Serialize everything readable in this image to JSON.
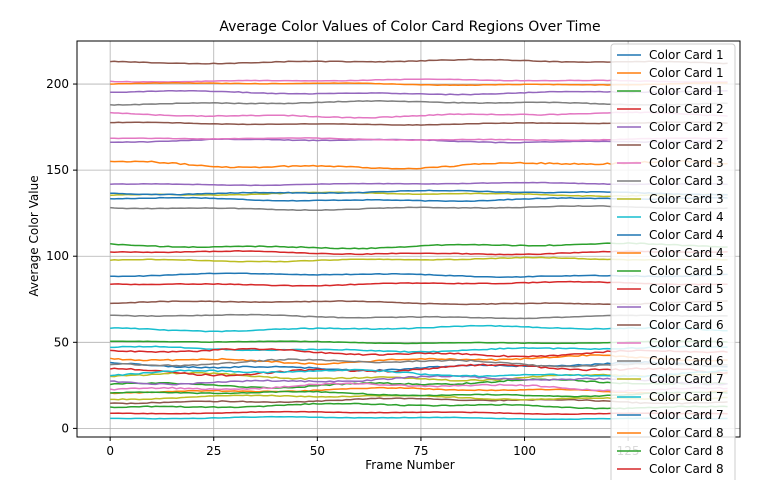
{
  "chart_data": {
    "type": "line",
    "title": "Average Color Values of Color Card Regions Over Time",
    "xlabel": "Frame Number",
    "ylabel": "Average Color Value",
    "xlim": [
      -8,
      152
    ],
    "ylim": [
      -5,
      225
    ],
    "x_ticks": [
      0,
      25,
      50,
      75,
      100,
      125
    ],
    "y_ticks": [
      0,
      50,
      100,
      150,
      200
    ],
    "grid": true,
    "legend_position": "right",
    "n_frames": 150,
    "series": [
      {
        "name": "Color Card 1",
        "color": "#1f77b4",
        "base": 133,
        "wobble": 1.5
      },
      {
        "name": "Color Card 1",
        "color": "#ff7f0e",
        "base": 153,
        "wobble": 3
      },
      {
        "name": "Color Card 1",
        "color": "#2ca02c",
        "base": 106,
        "wobble": 2
      },
      {
        "name": "Color Card 2",
        "color": "#d62728",
        "base": 84,
        "wobble": 1.5
      },
      {
        "name": "Color Card 2",
        "color": "#9467bd",
        "base": 142,
        "wobble": 1
      },
      {
        "name": "Color Card 2",
        "color": "#8c564b",
        "base": 213,
        "wobble": 1.5
      },
      {
        "name": "Color Card 3",
        "color": "#e377c2",
        "base": 202,
        "wobble": 1
      },
      {
        "name": "Color Card 3",
        "color": "#7f7f7f",
        "base": 189,
        "wobble": 1.5
      },
      {
        "name": "Color Card 3",
        "color": "#bcbd22",
        "base": 136,
        "wobble": 1.5
      },
      {
        "name": "Color Card 4",
        "color": "#17becf",
        "base": 6,
        "wobble": 1
      },
      {
        "name": "Color Card 4",
        "color": "#1f77b4",
        "base": 89,
        "wobble": 1.5
      },
      {
        "name": "Color Card 4",
        "color": "#ff7f0e",
        "base": 200,
        "wobble": 1
      },
      {
        "name": "Color Card 5",
        "color": "#2ca02c",
        "base": 50,
        "wobble": 1
      },
      {
        "name": "Color Card 5",
        "color": "#d62728",
        "base": 102,
        "wobble": 1.5
      },
      {
        "name": "Color Card 5",
        "color": "#9467bd",
        "base": 195,
        "wobble": 1.5
      },
      {
        "name": "Color Card 6",
        "color": "#8c564b",
        "base": 177,
        "wobble": 1
      },
      {
        "name": "Color Card 6",
        "color": "#e377c2",
        "base": 182,
        "wobble": 2
      },
      {
        "name": "Color Card 6",
        "color": "#7f7f7f",
        "base": 128,
        "wobble": 1.5
      },
      {
        "name": "Color Card 7",
        "color": "#bcbd22",
        "base": 98,
        "wobble": 1.5
      },
      {
        "name": "Color Card 7",
        "color": "#17becf",
        "base": 58,
        "wobble": 2
      },
      {
        "name": "Color Card 7",
        "color": "#1f77b4",
        "base": 137,
        "wobble": 1.5
      },
      {
        "name": "Color Card 8",
        "color": "#ff7f0e",
        "base": 22,
        "wobble": 2
      },
      {
        "name": "Color Card 8",
        "color": "#2ca02c",
        "base": 13,
        "wobble": 2
      },
      {
        "name": "Color Card 8",
        "color": "#d62728",
        "base": 9,
        "wobble": 1
      },
      {
        "color": "#9467bd",
        "base": 167,
        "wobble": 1.5
      },
      {
        "color": "#8c564b",
        "base": 73,
        "wobble": 1.5
      },
      {
        "color": "#e377c2",
        "base": 168,
        "wobble": 1
      },
      {
        "color": "#7f7f7f",
        "base": 65,
        "wobble": 1.5
      },
      {
        "color": "#bcbd22",
        "base": 30,
        "wobble": 3
      },
      {
        "color": "#17becf",
        "base": 46,
        "wobble": 2
      },
      {
        "color": "#1f77b4",
        "base": 36,
        "wobble": 3
      },
      {
        "color": "#ff7f0e",
        "base": 40,
        "wobble": 3
      },
      {
        "color": "#2ca02c",
        "base": 26,
        "wobble": 3
      },
      {
        "color": "#d62728",
        "base": 34,
        "wobble": 4
      },
      {
        "color": "#9467bd",
        "base": 28,
        "wobble": 3
      },
      {
        "color": "#8c564b",
        "base": 16,
        "wobble": 2
      },
      {
        "color": "#e377c2",
        "base": 24,
        "wobble": 3
      },
      {
        "color": "#7f7f7f",
        "base": 38,
        "wobble": 3
      },
      {
        "color": "#bcbd22",
        "base": 18,
        "wobble": 2
      },
      {
        "color": "#17becf",
        "base": 32,
        "wobble": 3
      },
      {
        "color": "#2ca02c",
        "base": 20,
        "wobble": 2
      },
      {
        "color": "#d62728",
        "base": 44,
        "wobble": 3
      }
    ]
  }
}
